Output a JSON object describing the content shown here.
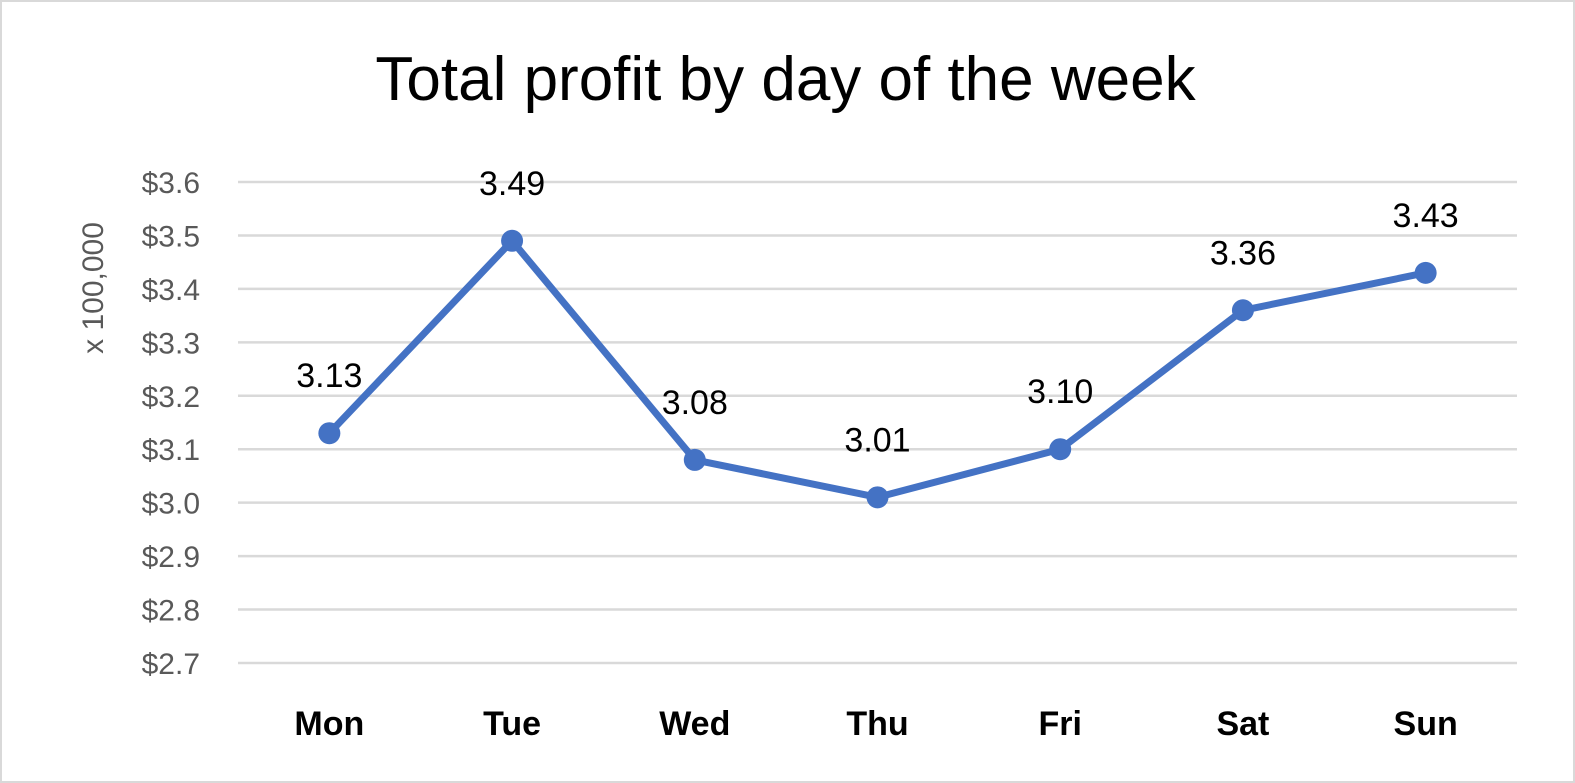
{
  "chart_data": {
    "type": "line",
    "title": "Total profit by day of the week",
    "xlabel": "",
    "ylabel": "x 100,000",
    "categories": [
      "Mon",
      "Tue",
      "Wed",
      "Thu",
      "Fri",
      "Sat",
      "Sun"
    ],
    "series": [
      {
        "values": [
          3.13,
          3.49,
          3.08,
          3.01,
          3.1,
          3.36,
          3.43
        ],
        "data_labels": [
          "3.13",
          "3.49",
          "3.08",
          "3.01",
          "3.10",
          "3.36",
          "3.43"
        ],
        "color": "#4472c4"
      }
    ],
    "ylim": [
      2.7,
      3.6
    ],
    "yticks": [
      2.7,
      2.8,
      2.9,
      3.0,
      3.1,
      3.2,
      3.3,
      3.4,
      3.5,
      3.6
    ],
    "ytick_labels": [
      "$2.7",
      "$2.8",
      "$2.9",
      "$3.0",
      "$3.1",
      "$3.2",
      "$3.3",
      "$3.4",
      "$3.5",
      "$3.6"
    ],
    "grid": true,
    "legend": "none",
    "gridline_color": "#d9d9d9"
  }
}
